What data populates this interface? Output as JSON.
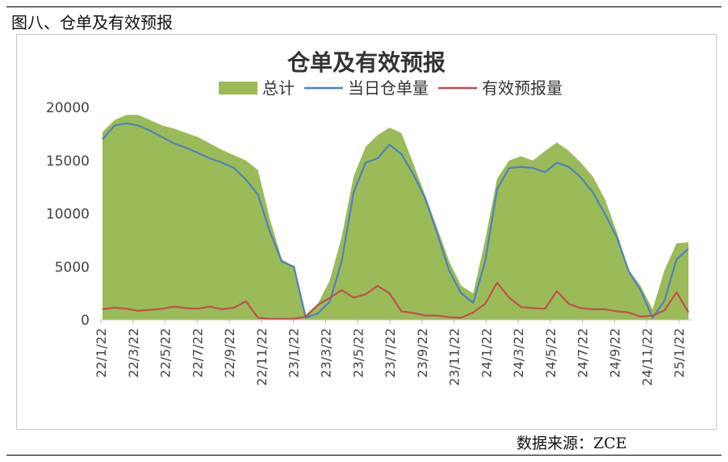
{
  "caption": "图八、仓单及有效预报",
  "source": "数据来源：ZCE",
  "chart_data": {
    "type": "area",
    "title": "仓单及有效预报",
    "xlabel": "",
    "ylabel": "",
    "ylim": [
      0,
      20000
    ],
    "yticks": [
      0,
      5000,
      10000,
      15000,
      20000
    ],
    "xticks": [
      "22/1/22",
      "22/3/22",
      "22/5/22",
      "22/7/22",
      "22/9/22",
      "22/11/22",
      "23/1/22",
      "23/3/22",
      "23/5/22",
      "23/7/22",
      "23/9/22",
      "23/11/22",
      "24/1/22",
      "24/3/22",
      "24/5/22",
      "24/7/22",
      "24/9/22",
      "24/11/22",
      "25/1/22"
    ],
    "grid": false,
    "legend": "top",
    "series": [
      {
        "name": "总计",
        "kind": "area",
        "color": "#9bbb59",
        "values": [
          17700,
          18800,
          19300,
          19300,
          18800,
          18300,
          18000,
          17600,
          17200,
          16600,
          16000,
          15500,
          15000,
          14100,
          9500,
          5700,
          5000,
          500,
          1500,
          3700,
          7800,
          13500,
          16300,
          17400,
          18100,
          17600,
          14700,
          11700,
          8600,
          5500,
          3200,
          2500,
          7500,
          13300,
          15000,
          15400,
          15000,
          15900,
          16700,
          15900,
          14800,
          13500,
          11400,
          8300,
          4700,
          3200,
          1000,
          4700,
          7200,
          7300
        ]
      },
      {
        "name": "当日仓单量",
        "kind": "line",
        "color": "#4f81bd",
        "values": [
          17000,
          18300,
          18500,
          18300,
          17800,
          17200,
          16600,
          16200,
          15700,
          15200,
          14800,
          14300,
          13200,
          11800,
          8300,
          5500,
          5000,
          200,
          600,
          1700,
          5500,
          12000,
          14800,
          15200,
          16500,
          15600,
          13700,
          11400,
          8100,
          4600,
          2500,
          1600,
          5500,
          12300,
          14300,
          14400,
          14300,
          13900,
          14800,
          14400,
          13400,
          12000,
          10000,
          7800,
          4600,
          2800,
          200,
          1800,
          5700,
          6700
        ]
      },
      {
        "name": "有效预报量",
        "kind": "line",
        "color": "#c0504d",
        "values": [
          1000,
          1150,
          1050,
          850,
          950,
          1050,
          1250,
          1100,
          1050,
          1250,
          1000,
          1150,
          1750,
          200,
          100,
          100,
          100,
          300,
          1400,
          2050,
          2800,
          2100,
          2400,
          3200,
          2500,
          800,
          650,
          400,
          400,
          250,
          200,
          700,
          1500,
          3500,
          2100,
          1200,
          1100,
          1050,
          2700,
          1500,
          1100,
          1000,
          1000,
          800,
          700,
          300,
          400,
          900,
          2600,
          700
        ]
      }
    ]
  }
}
